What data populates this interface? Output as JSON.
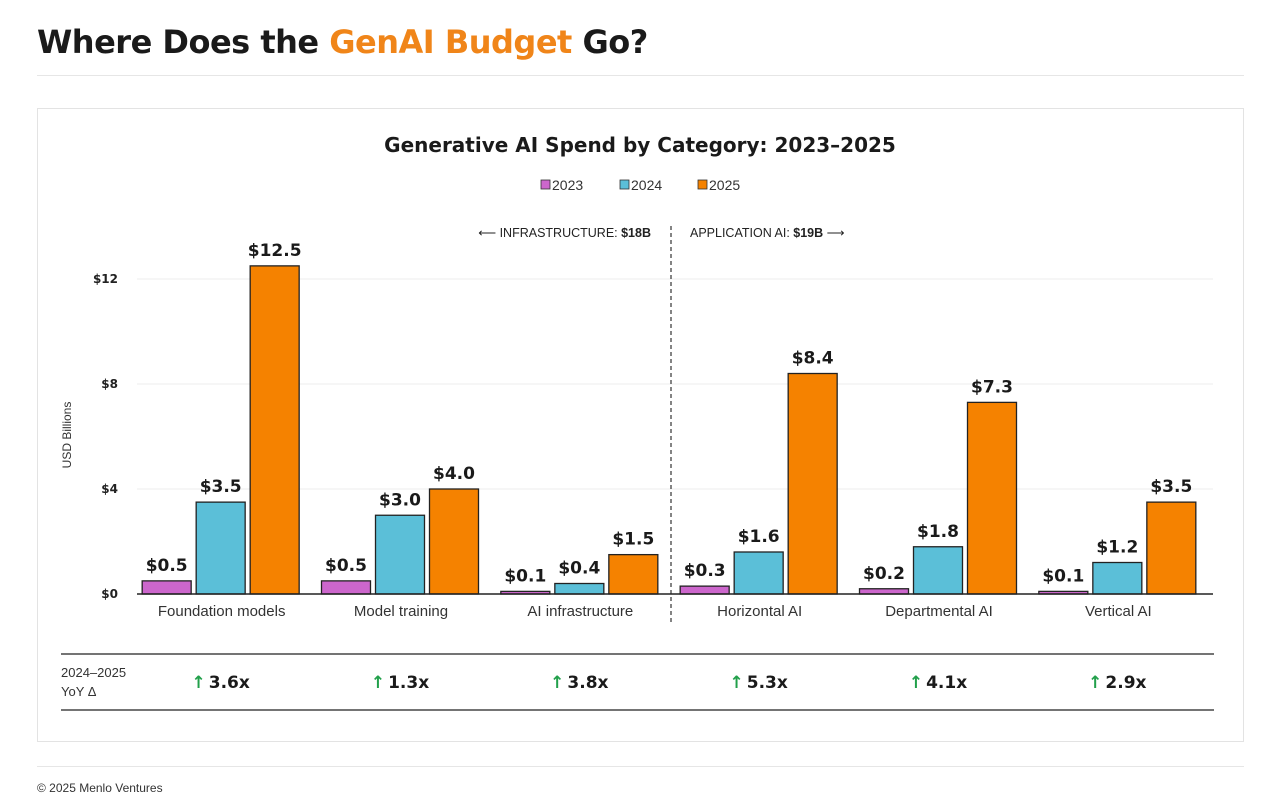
{
  "page": {
    "heading_pre": "Where Does the ",
    "heading_accent": "GenAI Budget",
    "heading_post": " Go?",
    "copyright": "© 2025 Menlo Ventures"
  },
  "colors": {
    "accent": "#f08519",
    "series_2023": "#cc66cc",
    "series_2024": "#5bbfd8",
    "series_2025": "#f58200",
    "yoy_up": "#22a04b"
  },
  "chart_data": {
    "type": "bar",
    "title": "Generative AI Spend by Category: 2023–2025",
    "ylabel": "USD Billions",
    "ylim": [
      0,
      14
    ],
    "yticks": [
      0,
      4,
      8,
      12
    ],
    "ytick_labels": [
      "$0",
      "$4",
      "$8",
      "$12"
    ],
    "grid": true,
    "legend": "top-center",
    "categories": [
      "Foundation models",
      "Model training",
      "AI infrastructure",
      "Horizontal AI",
      "Departmental AI",
      "Vertical AI"
    ],
    "series": [
      {
        "name": "2023",
        "values": [
          0.5,
          0.5,
          0.1,
          0.3,
          0.2,
          0.1
        ],
        "labels": [
          "$0.5",
          "$0.5",
          "$0.1",
          "$0.3",
          "$0.2",
          "$0.1"
        ]
      },
      {
        "name": "2024",
        "values": [
          3.5,
          3.0,
          0.4,
          1.6,
          1.8,
          1.2
        ],
        "labels": [
          "$3.5",
          "$3.0",
          "$0.4",
          "$1.6",
          "$1.8",
          "$1.2"
        ]
      },
      {
        "name": "2025",
        "values": [
          12.5,
          4.0,
          1.5,
          8.4,
          7.3,
          3.5
        ],
        "labels": [
          "$12.5",
          "$4.0",
          "$1.5",
          "$8.4",
          "$7.3",
          "$3.5"
        ]
      }
    ],
    "annotations": {
      "left_prefix": "⟵ INFRASTRUCTURE: ",
      "left_value": "$18B",
      "right_prefix": "APPLICATION AI: ",
      "right_value": "$19B",
      "right_suffix": " ⟶"
    },
    "yoy": {
      "label_line1": "2024–2025",
      "label_line2": "YoY Δ",
      "arrow": "↑",
      "values": [
        "3.6x",
        "1.3x",
        "3.8x",
        "5.3x",
        "4.1x",
        "2.9x"
      ]
    }
  }
}
